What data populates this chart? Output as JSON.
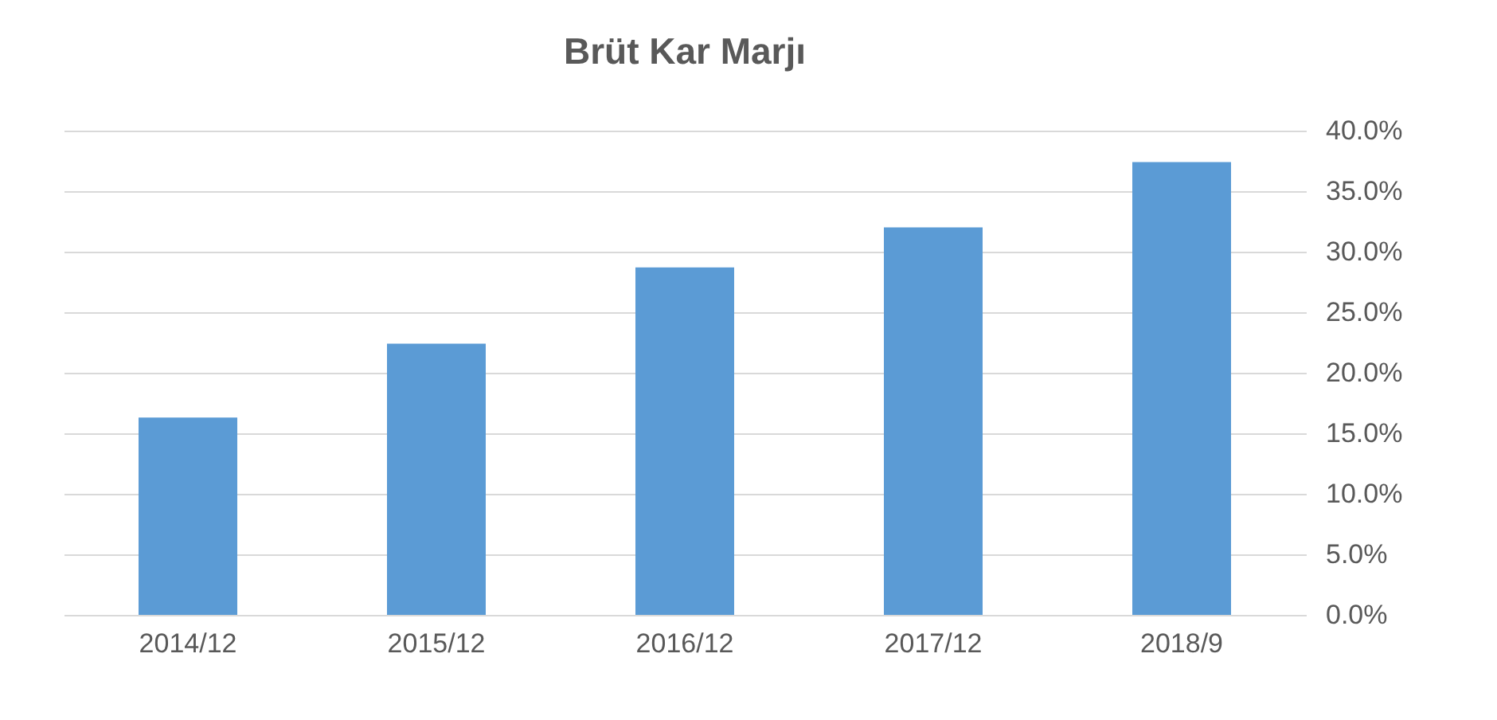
{
  "chart_data": {
    "type": "bar",
    "title": "Brüt Kar Marjı",
    "categories": [
      "2014/12",
      "2015/12",
      "2016/12",
      "2017/12",
      "2018/9"
    ],
    "values": [
      16.3,
      22.4,
      28.7,
      32.0,
      37.4
    ],
    "color": "#5b9bd5",
    "ylim": [
      0,
      40
    ],
    "yticks": [
      {
        "value": 0,
        "label": "0.0%"
      },
      {
        "value": 5,
        "label": "5.0%"
      },
      {
        "value": 10,
        "label": "10.0%"
      },
      {
        "value": 15,
        "label": "15.0%"
      },
      {
        "value": 20,
        "label": "20.0%"
      },
      {
        "value": 25,
        "label": "25.0%"
      },
      {
        "value": 30,
        "label": "30.0%"
      },
      {
        "value": 35,
        "label": "35.0%"
      },
      {
        "value": 40,
        "label": "40.0%"
      }
    ],
    "grid": "y"
  }
}
